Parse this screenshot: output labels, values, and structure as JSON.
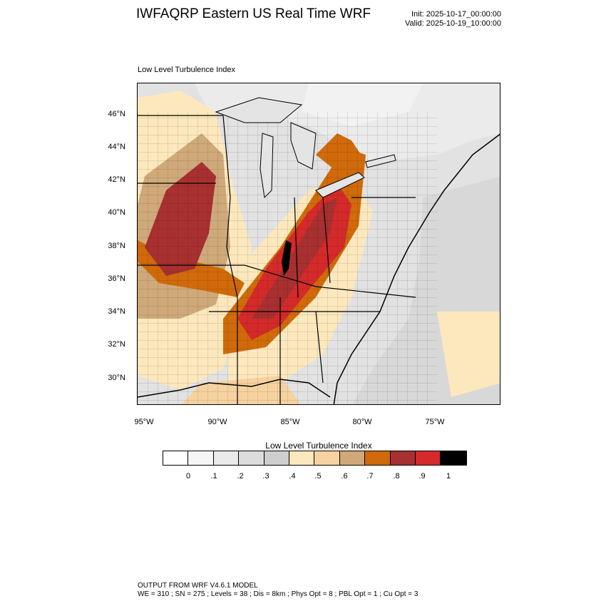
{
  "header": {
    "title": "IWFAQRP Eastern US Real Time WRF",
    "init": "Init: 2025-10-17_00:00:00",
    "valid": "Valid: 2025-10-19_10:00:00"
  },
  "panel": {
    "title": "Low Level Turbulence Index"
  },
  "axes": {
    "lat_labels": [
      "46°N",
      "44°N",
      "42°N",
      "40°N",
      "38°N",
      "36°N",
      "34°N",
      "32°N",
      "30°N"
    ],
    "lon_labels": [
      "95°W",
      "90°W",
      "85°W",
      "80°W",
      "75°W"
    ]
  },
  "colorbar": {
    "title": "Low Level Turbulence Index",
    "colors": [
      "#ffffff",
      "#f5f5f5",
      "#eaeaea",
      "#dcdcdc",
      "#cecece",
      "#fde8bd",
      "#f6d2a0",
      "#cfa97a",
      "#d06a0a",
      "#a83030",
      "#d42a2a",
      "#000000"
    ],
    "tick_labels": [
      "0",
      ".1",
      ".2",
      ".3",
      ".4",
      ".5",
      ".6",
      ".7",
      ".8",
      ".9",
      "1"
    ]
  },
  "footer": {
    "line1": "OUTPUT FROM WRF V4.6.1 MODEL",
    "line2": "WE = 310 ; SN = 275 ; Levels = 38 ; Dis = 8km ; Phys Opt = 8 ; PBL Opt = 1 ; Cu Opt = 3"
  }
}
